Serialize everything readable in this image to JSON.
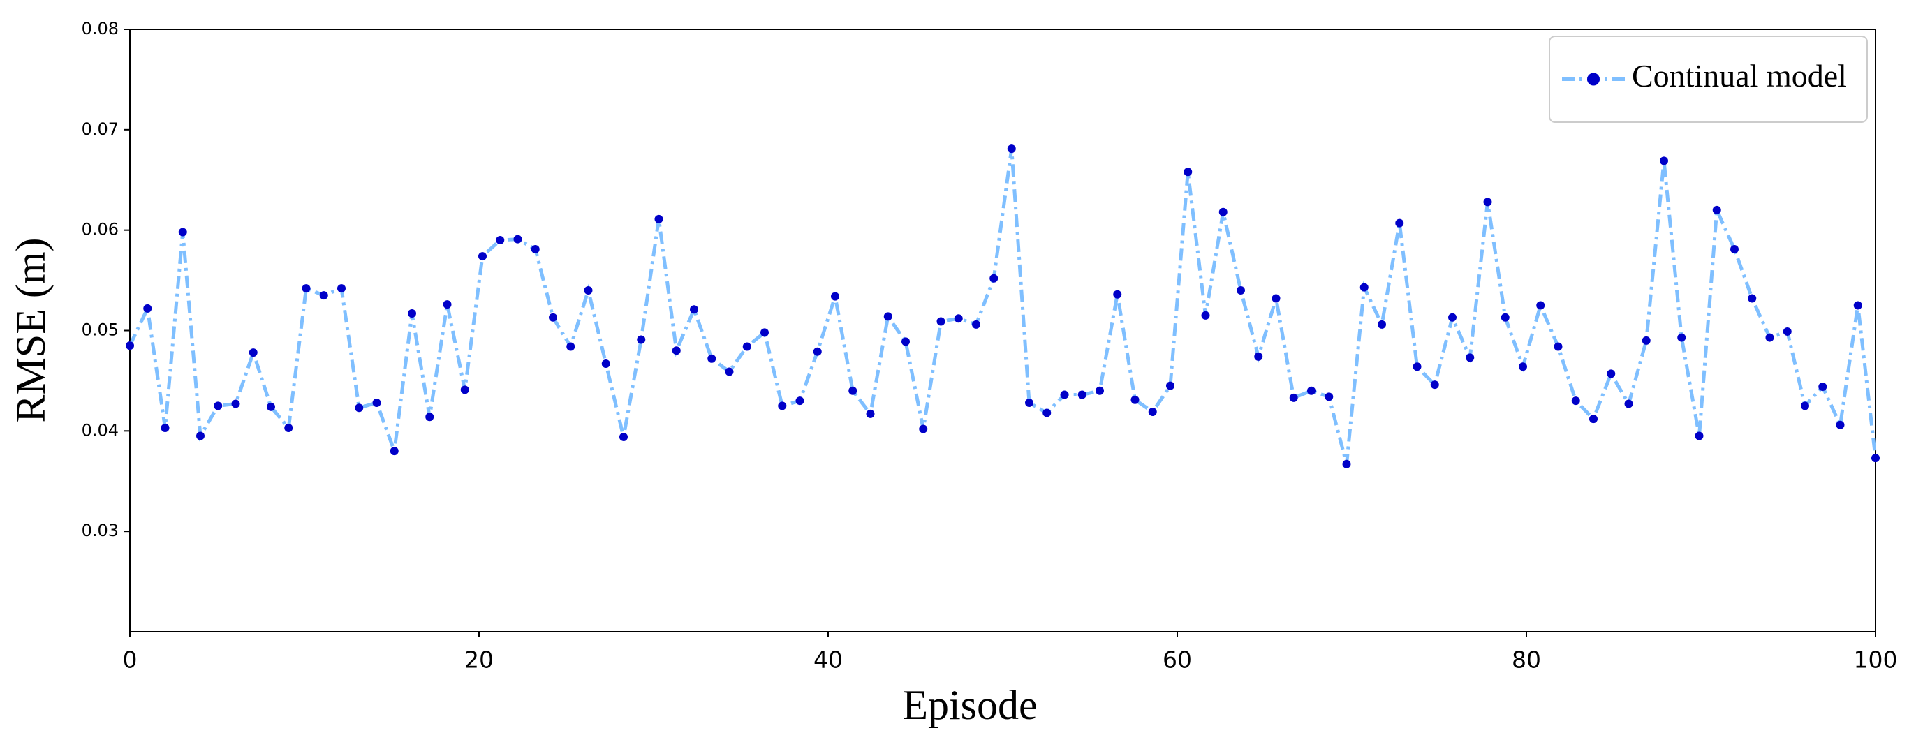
{
  "chart_data": {
    "type": "line",
    "x_label": "Episode",
    "y_label": "RMSE (m)",
    "x": [
      0,
      1.01,
      2.02,
      3.03,
      4.04,
      5.05,
      6.06,
      7.07,
      8.08,
      9.09,
      10.1,
      11.11,
      12.12,
      13.13,
      14.14,
      15.15,
      16.16,
      17.17,
      18.18,
      19.19,
      20.2,
      21.21,
      22.22,
      23.23,
      24.24,
      25.25,
      26.26,
      27.27,
      28.28,
      29.29,
      30.3,
      31.31,
      32.32,
      33.33,
      34.34,
      35.35,
      36.36,
      37.37,
      38.38,
      39.39,
      40.4,
      41.41,
      42.42,
      43.43,
      44.44,
      45.45,
      46.46,
      47.47,
      48.48,
      49.49,
      50.51,
      51.52,
      52.53,
      53.54,
      54.55,
      55.56,
      56.57,
      57.58,
      58.59,
      59.6,
      60.61,
      61.62,
      62.63,
      63.64,
      64.65,
      65.66,
      66.67,
      67.68,
      68.69,
      69.7,
      70.71,
      71.72,
      72.73,
      73.74,
      74.75,
      75.76,
      76.77,
      77.78,
      78.79,
      79.8,
      80.81,
      81.82,
      82.83,
      83.84,
      84.85,
      85.86,
      86.87,
      87.88,
      88.89,
      89.9,
      90.91,
      91.92,
      92.93,
      93.94,
      94.95,
      95.96,
      96.97,
      97.98,
      98.99,
      100
    ],
    "series": [
      {
        "name": "Continual model",
        "color": "#7fbfff",
        "marker_color": "#0000c8",
        "values": [
          0.0485,
          0.0522,
          0.0403,
          0.0598,
          0.0395,
          0.0425,
          0.0427,
          0.0478,
          0.0424,
          0.0403,
          0.0542,
          0.0535,
          0.0542,
          0.0423,
          0.0428,
          0.038,
          0.0517,
          0.0414,
          0.0526,
          0.0441,
          0.0574,
          0.059,
          0.0591,
          0.0581,
          0.0513,
          0.0484,
          0.054,
          0.0467,
          0.0394,
          0.0491,
          0.0611,
          0.048,
          0.0521,
          0.0472,
          0.0459,
          0.0484,
          0.0498,
          0.0425,
          0.043,
          0.0479,
          0.0534,
          0.044,
          0.0417,
          0.0514,
          0.0489,
          0.0402,
          0.0509,
          0.0512,
          0.0506,
          0.0552,
          0.0681,
          0.0428,
          0.0418,
          0.0436,
          0.0436,
          0.044,
          0.0536,
          0.0431,
          0.0419,
          0.0445,
          0.0658,
          0.0515,
          0.0618,
          0.054,
          0.0474,
          0.0532,
          0.0433,
          0.044,
          0.0434,
          0.0367,
          0.0543,
          0.0506,
          0.0607,
          0.0464,
          0.0446,
          0.0513,
          0.0473,
          0.0628,
          0.0513,
          0.0464,
          0.0525,
          0.0484,
          0.043,
          0.0412,
          0.0457,
          0.0427,
          0.049,
          0.0669,
          0.0493,
          0.0395,
          0.062,
          0.0581,
          0.0532,
          0.0493,
          0.0499,
          0.0425,
          0.0444,
          0.0406,
          0.0525,
          0.0373
        ]
      }
    ],
    "xlim": [
      0,
      100
    ],
    "xticks": [
      0,
      20,
      40,
      60,
      80,
      100
    ],
    "ylim": [
      0.02,
      0.08
    ],
    "yticks": [
      0.03,
      0.04,
      0.05,
      0.06,
      0.07,
      0.08
    ],
    "legend": "upper right",
    "grid": false
  }
}
